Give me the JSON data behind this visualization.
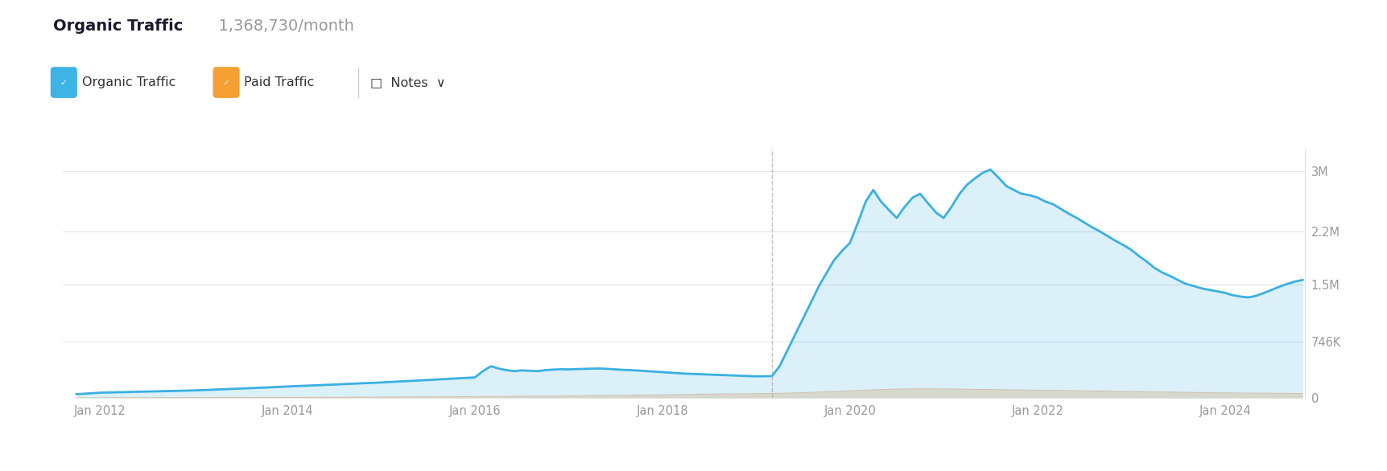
{
  "title_bold": "Organic Traffic",
  "title_light": "  1,368,730/month",
  "legend_items": [
    {
      "label": "Organic Traffic",
      "color": "#3ab0e2",
      "box_color": "#3eb4e6"
    },
    {
      "label": "Paid Traffic",
      "color": "#f5a033",
      "box_color": "#f5a033"
    }
  ],
  "notes_label": "Notes",
  "background_color": "#ffffff",
  "plot_bg_color": "#ffffff",
  "grid_color": "#e2e6ea",
  "organic_color": "#3ab0e2",
  "organic_fill_color": "#3ab0e2",
  "paid_color": "#f5c9a0",
  "paid_fill_color": "#f5c9a0",
  "dashed_line_x": 2019.17,
  "dashed_line_color": "#aaaaaa",
  "ylim": [
    0,
    3300000
  ],
  "yticks": [
    0,
    746000,
    1500000,
    2200000,
    3000000
  ],
  "ytick_labels": [
    "0",
    "746K",
    "1.5M",
    "2.2M",
    "3M"
  ],
  "xlim_start": 2011.6,
  "xlim_end": 2024.85,
  "xticks": [
    2012,
    2014,
    2016,
    2018,
    2020,
    2022,
    2024
  ],
  "xtick_labels": [
    "Jan 2012",
    "Jan 2014",
    "Jan 2016",
    "Jan 2018",
    "Jan 2020",
    "Jan 2022",
    "Jan 2024"
  ],
  "organic_data": [
    [
      2011.75,
      50000
    ],
    [
      2012.0,
      70000
    ],
    [
      2012.25,
      78000
    ],
    [
      2012.5,
      85000
    ],
    [
      2012.75,
      92000
    ],
    [
      2013.0,
      100000
    ],
    [
      2013.25,
      112000
    ],
    [
      2013.5,
      125000
    ],
    [
      2013.75,
      138000
    ],
    [
      2014.0,
      152000
    ],
    [
      2014.25,
      165000
    ],
    [
      2014.5,
      178000
    ],
    [
      2014.75,
      192000
    ],
    [
      2015.0,
      205000
    ],
    [
      2015.25,
      222000
    ],
    [
      2015.5,
      238000
    ],
    [
      2015.75,
      255000
    ],
    [
      2016.0,
      272000
    ],
    [
      2016.08,
      350000
    ],
    [
      2016.17,
      420000
    ],
    [
      2016.25,
      390000
    ],
    [
      2016.33,
      370000
    ],
    [
      2016.42,
      355000
    ],
    [
      2016.5,
      365000
    ],
    [
      2016.58,
      360000
    ],
    [
      2016.67,
      355000
    ],
    [
      2016.75,
      368000
    ],
    [
      2016.83,
      375000
    ],
    [
      2016.92,
      380000
    ],
    [
      2017.0,
      378000
    ],
    [
      2017.08,
      382000
    ],
    [
      2017.17,
      385000
    ],
    [
      2017.25,
      388000
    ],
    [
      2017.33,
      390000
    ],
    [
      2017.42,
      385000
    ],
    [
      2017.5,
      378000
    ],
    [
      2017.58,
      372000
    ],
    [
      2017.67,
      368000
    ],
    [
      2017.75,
      362000
    ],
    [
      2017.83,
      355000
    ],
    [
      2017.92,
      348000
    ],
    [
      2018.0,
      342000
    ],
    [
      2018.08,
      335000
    ],
    [
      2018.17,
      328000
    ],
    [
      2018.25,
      322000
    ],
    [
      2018.33,
      318000
    ],
    [
      2018.42,
      314000
    ],
    [
      2018.5,
      310000
    ],
    [
      2018.58,
      306000
    ],
    [
      2018.67,
      302000
    ],
    [
      2018.75,
      298000
    ],
    [
      2018.83,
      294000
    ],
    [
      2018.92,
      290000
    ],
    [
      2019.0,
      286000
    ],
    [
      2019.17,
      290000
    ],
    [
      2019.25,
      420000
    ],
    [
      2019.33,
      620000
    ],
    [
      2019.42,
      850000
    ],
    [
      2019.5,
      1050000
    ],
    [
      2019.58,
      1250000
    ],
    [
      2019.67,
      1480000
    ],
    [
      2019.75,
      1650000
    ],
    [
      2019.83,
      1820000
    ],
    [
      2019.92,
      1950000
    ],
    [
      2020.0,
      2050000
    ],
    [
      2020.08,
      2300000
    ],
    [
      2020.17,
      2600000
    ],
    [
      2020.25,
      2750000
    ],
    [
      2020.33,
      2600000
    ],
    [
      2020.42,
      2480000
    ],
    [
      2020.5,
      2380000
    ],
    [
      2020.58,
      2520000
    ],
    [
      2020.67,
      2650000
    ],
    [
      2020.75,
      2700000
    ],
    [
      2020.83,
      2580000
    ],
    [
      2020.92,
      2450000
    ],
    [
      2021.0,
      2380000
    ],
    [
      2021.08,
      2520000
    ],
    [
      2021.17,
      2700000
    ],
    [
      2021.25,
      2820000
    ],
    [
      2021.33,
      2900000
    ],
    [
      2021.42,
      2980000
    ],
    [
      2021.5,
      3020000
    ],
    [
      2021.58,
      2920000
    ],
    [
      2021.67,
      2800000
    ],
    [
      2021.75,
      2750000
    ],
    [
      2021.83,
      2700000
    ],
    [
      2021.92,
      2680000
    ],
    [
      2022.0,
      2650000
    ],
    [
      2022.08,
      2600000
    ],
    [
      2022.17,
      2560000
    ],
    [
      2022.25,
      2500000
    ],
    [
      2022.33,
      2440000
    ],
    [
      2022.42,
      2380000
    ],
    [
      2022.5,
      2320000
    ],
    [
      2022.58,
      2260000
    ],
    [
      2022.67,
      2200000
    ],
    [
      2022.75,
      2140000
    ],
    [
      2022.83,
      2080000
    ],
    [
      2022.92,
      2020000
    ],
    [
      2023.0,
      1960000
    ],
    [
      2023.08,
      1880000
    ],
    [
      2023.17,
      1800000
    ],
    [
      2023.25,
      1720000
    ],
    [
      2023.33,
      1660000
    ],
    [
      2023.42,
      1610000
    ],
    [
      2023.5,
      1560000
    ],
    [
      2023.58,
      1510000
    ],
    [
      2023.67,
      1480000
    ],
    [
      2023.75,
      1450000
    ],
    [
      2023.83,
      1430000
    ],
    [
      2023.92,
      1410000
    ],
    [
      2024.0,
      1390000
    ],
    [
      2024.08,
      1360000
    ],
    [
      2024.17,
      1340000
    ],
    [
      2024.25,
      1330000
    ],
    [
      2024.33,
      1350000
    ],
    [
      2024.42,
      1390000
    ],
    [
      2024.5,
      1430000
    ],
    [
      2024.58,
      1470000
    ],
    [
      2024.67,
      1510000
    ],
    [
      2024.75,
      1540000
    ],
    [
      2024.83,
      1560000
    ]
  ],
  "paid_data": [
    [
      2011.75,
      3000
    ],
    [
      2012.0,
      4000
    ],
    [
      2012.5,
      5000
    ],
    [
      2013.0,
      6000
    ],
    [
      2013.5,
      7000
    ],
    [
      2014.0,
      8000
    ],
    [
      2014.5,
      10000
    ],
    [
      2015.0,
      12000
    ],
    [
      2015.5,
      15000
    ],
    [
      2016.0,
      18000
    ],
    [
      2016.5,
      22000
    ],
    [
      2017.0,
      28000
    ],
    [
      2017.5,
      35000
    ],
    [
      2018.0,
      42000
    ],
    [
      2018.5,
      52000
    ],
    [
      2019.0,
      58000
    ],
    [
      2019.17,
      60000
    ],
    [
      2019.25,
      62000
    ],
    [
      2019.5,
      70000
    ],
    [
      2019.75,
      82000
    ],
    [
      2020.0,
      95000
    ],
    [
      2020.25,
      108000
    ],
    [
      2020.5,
      118000
    ],
    [
      2020.75,
      122000
    ],
    [
      2021.0,
      120000
    ],
    [
      2021.25,
      116000
    ],
    [
      2021.5,
      112000
    ],
    [
      2021.75,
      108000
    ],
    [
      2022.0,
      104000
    ],
    [
      2022.25,
      100000
    ],
    [
      2022.5,
      95000
    ],
    [
      2022.75,
      90000
    ],
    [
      2023.0,
      85000
    ],
    [
      2023.25,
      80000
    ],
    [
      2023.5,
      76000
    ],
    [
      2023.75,
      72000
    ],
    [
      2024.0,
      68000
    ],
    [
      2024.25,
      65000
    ],
    [
      2024.5,
      63000
    ],
    [
      2024.75,
      60000
    ],
    [
      2024.83,
      59000
    ]
  ]
}
